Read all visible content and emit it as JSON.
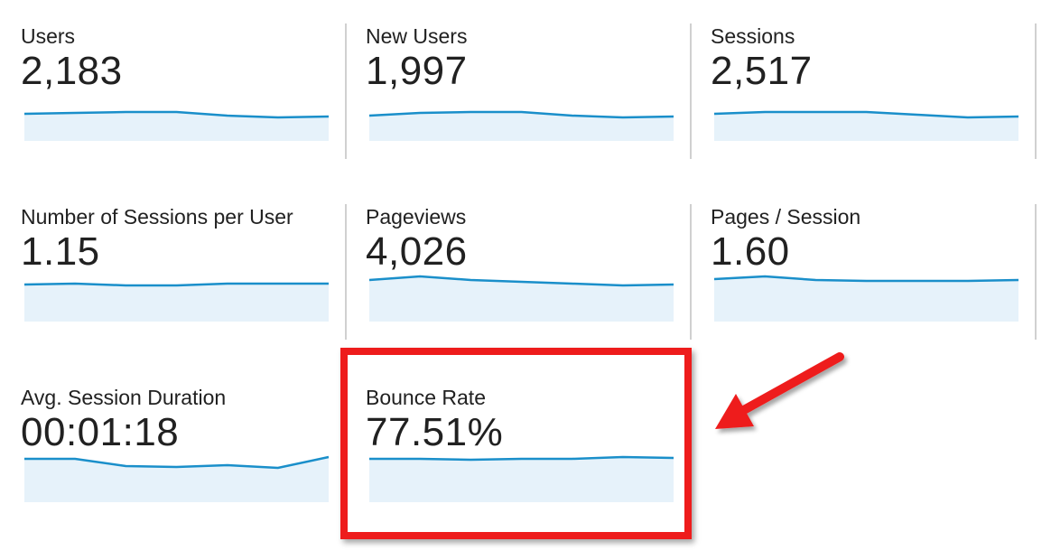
{
  "accent_line": "#1a8fca",
  "accent_fill": "#e6f2fa",
  "highlight_color": "#ee1c1c",
  "metrics": [
    {
      "label": "Users",
      "value": "2,183",
      "spark": [
        120,
        119,
        118,
        118,
        122,
        124,
        123
      ]
    },
    {
      "label": "New Users",
      "value": "1,997",
      "spark": [
        122,
        119,
        118,
        118,
        122,
        124,
        123
      ]
    },
    {
      "label": "Sessions",
      "value": "2,517",
      "spark": [
        120,
        118,
        118,
        118,
        121,
        124,
        123
      ]
    },
    {
      "label": "Number of Sessions per User",
      "value": "1.15",
      "spark": [
        109,
        108,
        110,
        110,
        108,
        108,
        108
      ]
    },
    {
      "label": "Pageviews",
      "value": "4,026",
      "spark": [
        104,
        95,
        104,
        106,
        108,
        110,
        109
      ]
    },
    {
      "label": "Pages / Session",
      "value": "1.60",
      "spark": [
        103,
        97,
        104,
        105,
        105,
        105,
        104
      ]
    },
    {
      "label": "Avg. Session Duration",
      "value": "00:01:18",
      "spark": [
        102,
        102,
        110,
        111,
        109,
        112,
        100
      ]
    },
    {
      "label": "Bounce Rate",
      "value": "77.51%",
      "spark": [
        102,
        102,
        103,
        102,
        102,
        100,
        101
      ]
    }
  ]
}
